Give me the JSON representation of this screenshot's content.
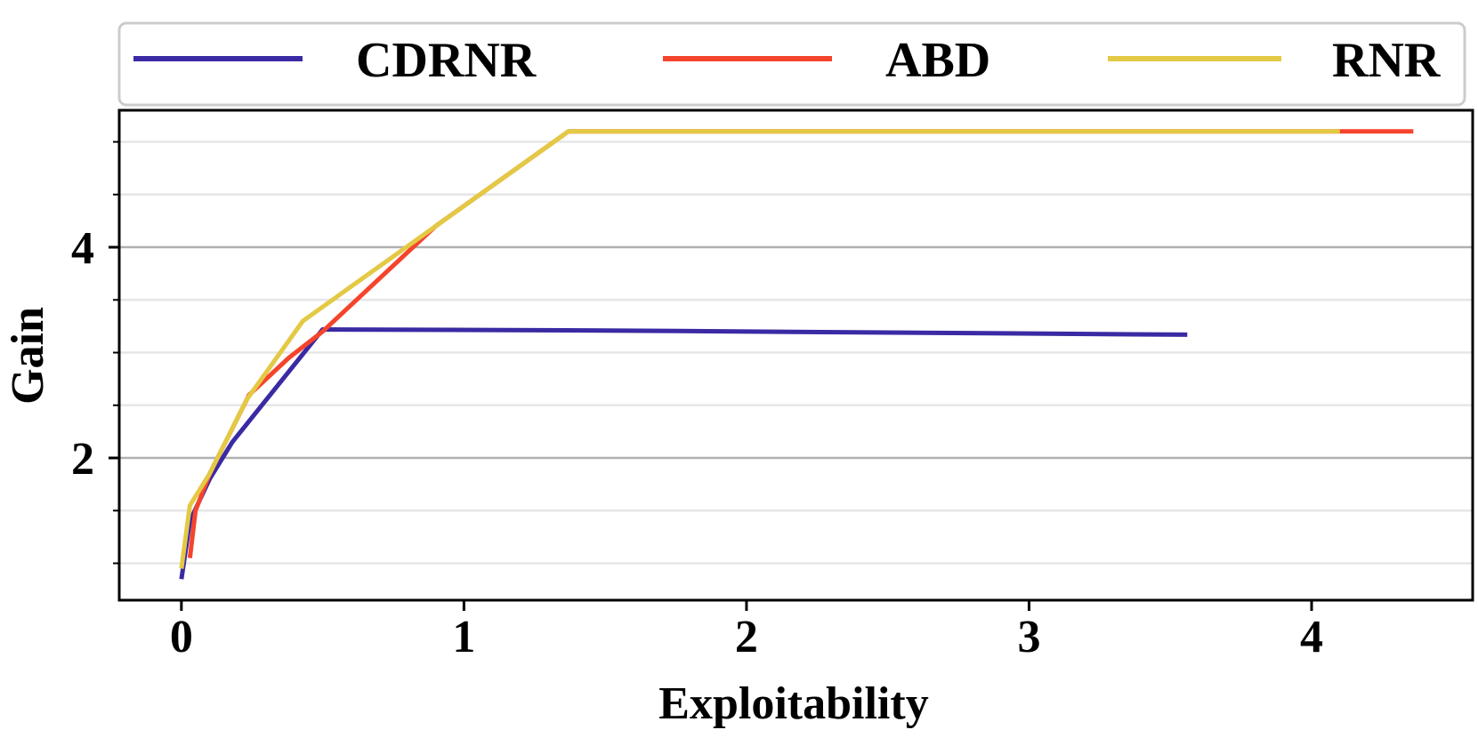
{
  "chart_data": {
    "type": "line",
    "title": "",
    "xlabel": "Exploitability",
    "ylabel": "Gain",
    "xlim": [
      -0.22,
      4.57
    ],
    "ylim": [
      0.65,
      5.3
    ],
    "xticks": [
      0,
      1,
      2,
      3,
      4
    ],
    "yticks_major": [
      2,
      4
    ],
    "yticks_minor": [
      1,
      1.5,
      2.5,
      3,
      3.5,
      4.5,
      5
    ],
    "grid": true,
    "legend_position": "top",
    "series": [
      {
        "name": "CDRNR",
        "color": "#3a2aa3",
        "x": [
          0,
          0.03,
          0.1,
          0.18,
          0.5,
          1.5,
          2.5,
          3.56
        ],
        "y": [
          0.85,
          1.4,
          1.8,
          2.15,
          3.22,
          3.21,
          3.19,
          3.17
        ]
      },
      {
        "name": "ABD",
        "color": "#f5442c",
        "x": [
          0.03,
          0.05,
          0.1,
          0.24,
          0.38,
          0.5,
          0.9,
          1.37,
          4.1,
          4.36
        ],
        "y": [
          1.05,
          1.5,
          1.85,
          2.6,
          2.95,
          3.2,
          4.2,
          5.1,
          5.1,
          5.1
        ]
      },
      {
        "name": "RNR",
        "color": "#e3c944",
        "x": [
          0,
          0.03,
          0.1,
          0.23,
          0.43,
          1.37,
          4.1
        ],
        "y": [
          0.95,
          1.55,
          1.85,
          2.55,
          3.3,
          5.1,
          5.1
        ]
      }
    ]
  }
}
